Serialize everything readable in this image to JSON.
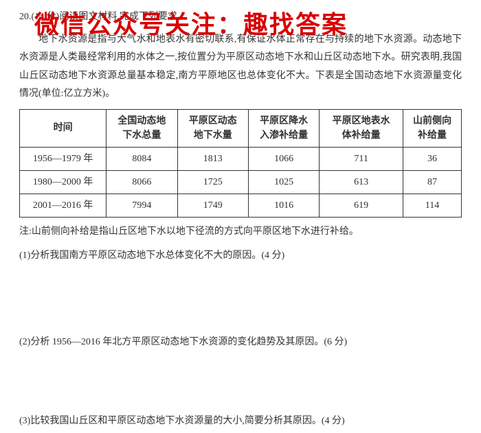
{
  "watermark": "微信公众号关注：趣找答案",
  "question_header": "20.(14 分)阅读图文材料,完成下列要求。",
  "body_line1": "地下水资源是指与大气水和地表水有密切联系,有保证水体正常存在与持续的地下水资源。动态地下水资源是人类最经常利用的水体之一,按位置分为平原区动态地下水和山丘区动态地下水。研究表明,我国山丘区动态地下水资源总量基本稳定,南方平原地区也总体变化不大。下表是全国动态地下水资源量变化情况(单位:亿立方米)。",
  "table": {
    "columns": [
      "时间",
      "全国动态地下水总量",
      "平原区动态地下水量",
      "平原区降水入渗补给量",
      "平原区地表水体补给量",
      "山前侧向补给量"
    ],
    "rows": [
      [
        "1956—1979 年",
        "8084",
        "1813",
        "1066",
        "711",
        "36"
      ],
      [
        "1980—2000 年",
        "8066",
        "1725",
        "1025",
        "613",
        "87"
      ],
      [
        "2001—2016 年",
        "7994",
        "1749",
        "1016",
        "619",
        "114"
      ]
    ],
    "border_color": "#333333",
    "col_header_lines": [
      [
        "时间"
      ],
      [
        "全国动态地",
        "下水总量"
      ],
      [
        "平原区动态",
        "地下水量"
      ],
      [
        "平原区降水",
        "入渗补给量"
      ],
      [
        "平原区地表水",
        "体补给量"
      ],
      [
        "山前侧向",
        "补给量"
      ]
    ]
  },
  "note": "注:山前侧向补给是指山丘区地下水以地下径流的方式向平原区地下水进行补给。",
  "sub1": "(1)分析我国南方平原区动态地下水总体变化不大的原因。(4 分)",
  "sub2": "(2)分析 1956—2016 年北方平原区动态地下水资源的变化趋势及其原因。(6 分)",
  "sub3": "(3)比较我国山丘区和平原区动态地下水资源量的大小,简要分析其原因。(4 分)"
}
